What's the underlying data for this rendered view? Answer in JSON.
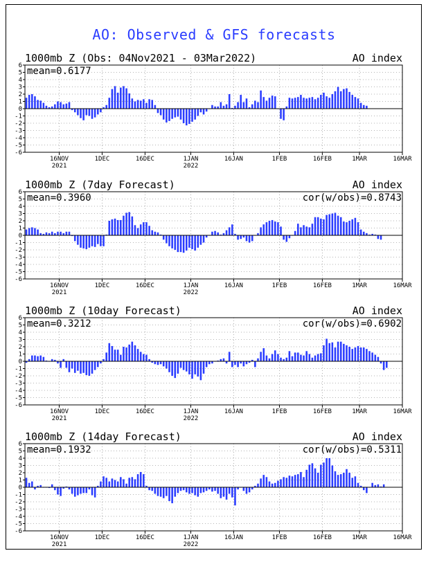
{
  "title": "AO: Observed & GFS forecasts",
  "x_tick_labels": [
    {
      "top": "16NOV",
      "bottom": "2021",
      "day": 12
    },
    {
      "top": "1DEC",
      "bottom": "",
      "day": 27
    },
    {
      "top": "16DEC",
      "bottom": "",
      "day": 42
    },
    {
      "top": "1JAN",
      "bottom": "2022",
      "day": 58
    },
    {
      "top": "16JAN",
      "bottom": "",
      "day": 73
    },
    {
      "top": "1FEB",
      "bottom": "",
      "day": 89
    },
    {
      "top": "16FEB",
      "bottom": "",
      "day": 104
    },
    {
      "top": "1MAR",
      "bottom": "",
      "day": 117
    },
    {
      "top": "16MAR",
      "bottom": "",
      "day": 132
    }
  ],
  "y_tick_labels": [
    "6",
    "5",
    "4",
    "3",
    "2",
    "1",
    "0",
    "-1",
    "-2",
    "-3",
    "-4",
    "-5",
    "-6"
  ],
  "chart_data": [
    {
      "type": "bar",
      "title": "1000mb Z (Obs: 04Nov2021 - 03Mar2022)",
      "right_label": "AO index",
      "stat_left": "mean=0.6177",
      "stat_right": "",
      "x_start": "04Nov2021",
      "ylim": [
        -6,
        6
      ],
      "grid": true,
      "values": [
        1.5,
        1.9,
        2.0,
        1.7,
        1.2,
        1.1,
        0.8,
        0.4,
        0.2,
        0.3,
        0.6,
        1.0,
        0.9,
        0.6,
        0.7,
        0.9,
        -0.2,
        -0.5,
        -0.9,
        -1.3,
        -1.6,
        -0.9,
        -1.0,
        -1.4,
        -1.2,
        -0.8,
        -0.5,
        0.2,
        0.5,
        1.5,
        2.7,
        3.1,
        2.2,
        2.9,
        3.1,
        2.8,
        2.1,
        1.4,
        1.0,
        1.2,
        1.1,
        1.3,
        0.8,
        1.3,
        1.2,
        0.5,
        -0.6,
        -0.9,
        -1.5,
        -1.9,
        -1.7,
        -1.4,
        -1.2,
        -1.1,
        -1.5,
        -2.0,
        -2.3,
        -2.1,
        -1.8,
        -1.5,
        -1.0,
        -0.5,
        -0.8,
        -0.4,
        0.0,
        0.5,
        0.3,
        0.3,
        0.9,
        0.4,
        0.6,
        2.0,
        0.1,
        0.4,
        0.9,
        1.9,
        0.9,
        1.4,
        0.2,
        0.6,
        1.1,
        0.9,
        2.5,
        1.6,
        1.1,
        1.5,
        1.8,
        1.7,
        0.0,
        -1.4,
        -1.6,
        0.3,
        1.5,
        1.4,
        1.5,
        1.6,
        1.9,
        1.5,
        1.4,
        1.5,
        1.6,
        1.3,
        1.5,
        1.9,
        2.2,
        1.7,
        1.5,
        2.0,
        2.4,
        3.0,
        2.4,
        2.7,
        2.8,
        2.3,
        1.9,
        1.6,
        1.4,
        0.8,
        0.5,
        0.4
      ]
    },
    {
      "type": "bar",
      "title": "1000mb Z (7day Forecast)",
      "right_label": "AO index",
      "stat_left": "mean=0.3960",
      "stat_right": "cor(w/obs)=0.8743",
      "x_start": "04Nov2021",
      "ylim": [
        -6,
        6
      ],
      "grid": true,
      "values": [
        0.8,
        1.0,
        1.1,
        1.0,
        0.8,
        0.3,
        0.2,
        0.4,
        0.3,
        0.5,
        0.3,
        0.5,
        0.5,
        0.3,
        0.5,
        0.5,
        -0.1,
        -0.8,
        -1.3,
        -1.7,
        -1.8,
        -1.9,
        -1.7,
        -1.5,
        -1.6,
        -1.2,
        -1.5,
        -1.5,
        0.1,
        2.0,
        2.2,
        2.3,
        2.1,
        2.1,
        2.7,
        3.1,
        3.2,
        2.6,
        1.4,
        1.0,
        1.5,
        1.8,
        1.8,
        1.3,
        0.7,
        0.5,
        0.4,
        0.1,
        -0.6,
        -1.1,
        -1.5,
        -1.8,
        -2.0,
        -2.3,
        -2.3,
        -2.4,
        -2.1,
        -1.7,
        -1.9,
        -2.1,
        -1.7,
        -1.3,
        -1.0,
        -0.3,
        0.0,
        0.5,
        0.6,
        0.4,
        0.1,
        0.3,
        0.7,
        1.1,
        1.5,
        0.2,
        -0.6,
        -0.5,
        -0.3,
        -0.8,
        -1.0,
        -0.8,
        0.0,
        0.3,
        1.1,
        1.5,
        1.8,
        2.0,
        2.1,
        1.9,
        1.8,
        1.2,
        -0.6,
        -0.9,
        -0.4,
        0.0,
        0.6,
        1.6,
        1.1,
        1.4,
        1.2,
        1.1,
        1.6,
        2.5,
        2.5,
        2.3,
        2.2,
        2.8,
        2.9,
        3.0,
        3.1,
        2.7,
        2.5,
        1.9,
        1.8,
        2.0,
        2.2,
        2.4,
        1.8,
        0.8,
        0.5,
        0.3,
        0.1,
        0.2,
        0.1,
        -0.5,
        -0.6
      ]
    },
    {
      "type": "bar",
      "title": "1000mb Z (10day Forecast)",
      "right_label": "AO index",
      "stat_left": "mean=0.3212",
      "stat_right": "cor(w/obs)=0.6902",
      "x_start": "04Nov2021",
      "ylim": [
        -6,
        6
      ],
      "grid": true,
      "values": [
        -0.2,
        0.3,
        0.8,
        0.8,
        0.7,
        0.8,
        0.6,
        0.1,
        0.0,
        0.3,
        0.2,
        -0.3,
        -0.9,
        0.3,
        -0.9,
        -1.5,
        -1.0,
        -1.6,
        -1.3,
        -1.7,
        -1.6,
        -1.9,
        -2.0,
        -1.7,
        -1.2,
        -0.8,
        -0.3,
        0.3,
        1.2,
        2.5,
        2.1,
        1.6,
        1.6,
        0.9,
        2.0,
        1.9,
        2.3,
        2.7,
        2.2,
        1.7,
        1.3,
        1.0,
        0.9,
        0.3,
        -0.2,
        -0.4,
        -0.5,
        -0.4,
        -0.7,
        -1.0,
        -1.5,
        -2.0,
        -2.3,
        -1.7,
        -0.9,
        -1.2,
        -1.4,
        -1.8,
        -2.4,
        -1.8,
        -2.1,
        -2.6,
        -1.7,
        -0.8,
        -0.4,
        -0.3,
        0.0,
        0.1,
        0.3,
        0.4,
        -0.3,
        1.3,
        -0.8,
        -0.5,
        -0.8,
        -0.3,
        -0.7,
        -0.4,
        -0.2,
        0.2,
        -0.8,
        0.4,
        1.3,
        1.8,
        0.8,
        0.4,
        1.0,
        1.5,
        1.0,
        0.5,
        0.3,
        0.5,
        1.4,
        0.7,
        1.2,
        1.2,
        0.9,
        0.8,
        1.4,
        1.0,
        0.5,
        0.8,
        1.0,
        1.1,
        2.2,
        3.1,
        2.5,
        2.6,
        1.9,
        2.7,
        2.7,
        2.4,
        2.2,
        2.0,
        1.7,
        1.9,
        2.1,
        1.9,
        1.9,
        1.7,
        1.4,
        1.2,
        0.9,
        0.6,
        -0.3,
        -1.2,
        -0.9
      ]
    },
    {
      "type": "bar",
      "title": "1000mb Z (14day Forecast)",
      "right_label": "AO index",
      "stat_left": "mean=0.1932",
      "stat_right": "cor(w/obs)=0.5311",
      "x_start": "04Nov2021",
      "ylim": [
        -6,
        6
      ],
      "grid": true,
      "values": [
        1.3,
        0.6,
        0.8,
        -0.3,
        0.2,
        0.3,
        0.0,
        0.0,
        -0.1,
        0.4,
        -0.4,
        -1.0,
        -1.2,
        -0.2,
        0.1,
        -0.3,
        -0.9,
        -1.3,
        -1.1,
        -0.9,
        -0.8,
        -0.8,
        -0.3,
        -1.1,
        -1.4,
        0.2,
        0.8,
        1.5,
        1.3,
        0.8,
        1.2,
        1.0,
        0.8,
        1.4,
        1.1,
        0.5,
        1.3,
        1.4,
        1.1,
        1.8,
        2.1,
        1.8,
        0.2,
        -0.4,
        -0.5,
        -0.9,
        -1.2,
        -1.3,
        -1.5,
        -1.2,
        -1.9,
        -2.2,
        -1.3,
        -0.8,
        -0.5,
        -0.4,
        -0.7,
        -0.9,
        -0.8,
        -1.1,
        -1.3,
        -0.8,
        -0.7,
        -0.5,
        -0.3,
        -0.6,
        -0.5,
        -0.9,
        -1.5,
        -1.3,
        -1.7,
        -0.9,
        -1.4,
        -2.5,
        -0.3,
        0.0,
        -0.5,
        -0.9,
        -0.7,
        -0.3,
        0.2,
        0.5,
        1.2,
        1.7,
        1.4,
        0.8,
        0.5,
        0.6,
        0.9,
        1.1,
        1.4,
        1.3,
        1.6,
        1.5,
        1.7,
        1.8,
        2.1,
        1.4,
        2.4,
        3.1,
        3.3,
        2.6,
        2.0,
        3.1,
        3.4,
        4.0,
        4.0,
        3.0,
        2.2,
        1.7,
        1.8,
        2.0,
        2.5,
        2.0,
        1.3,
        1.5,
        0.6,
        0.2,
        -0.4,
        -0.8,
        0.0,
        0.6,
        0.3,
        0.4,
        0.1,
        0.4
      ]
    }
  ]
}
